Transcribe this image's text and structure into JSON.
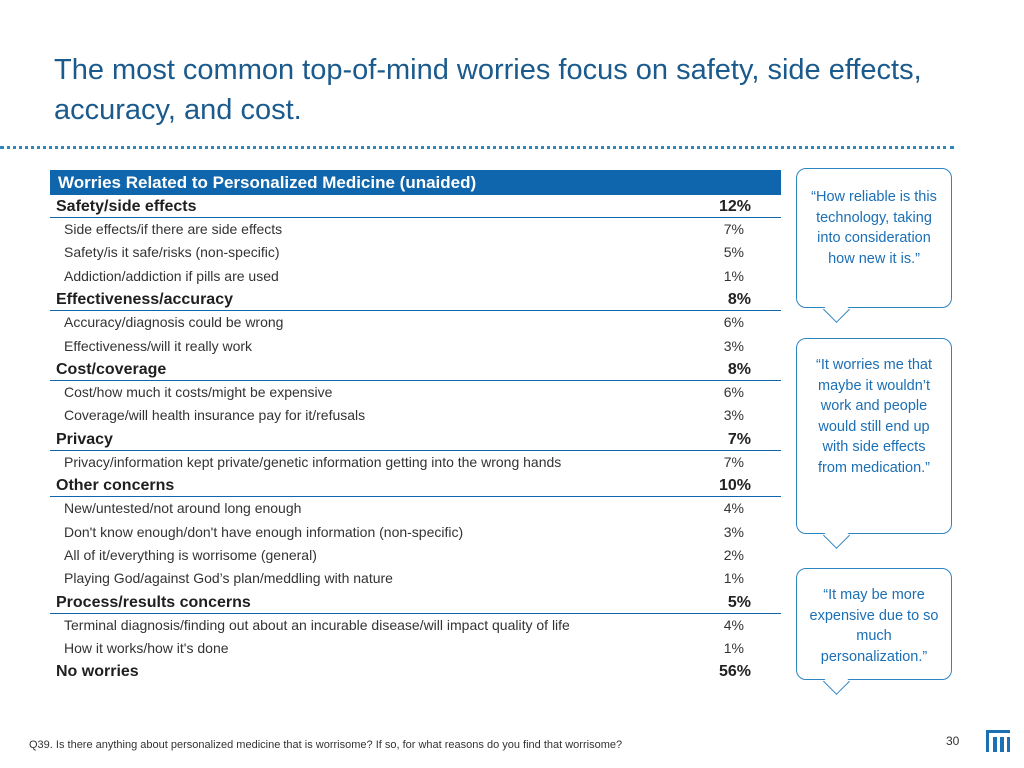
{
  "title": "The most common top-of-mind worries focus on safety, side effects, accuracy, and cost.",
  "table": {
    "header": "Worries Related to Personalized Medicine (unaided)",
    "rows": [
      {
        "kind": "cat",
        "label": "Safety/side effects",
        "pct": "12%"
      },
      {
        "kind": "sub",
        "label": "Side effects/if there are side effects",
        "pct": "7%"
      },
      {
        "kind": "sub",
        "label": "Safety/is it safe/risks (non-specific)",
        "pct": "5%"
      },
      {
        "kind": "sub",
        "label": "Addiction/addiction if pills are used",
        "pct": "1%"
      },
      {
        "kind": "cat",
        "label": "Effectiveness/accuracy",
        "pct": "8%"
      },
      {
        "kind": "sub",
        "label": "Accuracy/diagnosis could be wrong",
        "pct": "6%"
      },
      {
        "kind": "sub",
        "label": "Effectiveness/will it really work",
        "pct": "3%"
      },
      {
        "kind": "cat",
        "label": "Cost/coverage",
        "pct": "8%"
      },
      {
        "kind": "sub",
        "label": "Cost/how much it costs/might be expensive",
        "pct": "6%"
      },
      {
        "kind": "sub",
        "label": "Coverage/will health insurance pay for it/refusals",
        "pct": "3%"
      },
      {
        "kind": "cat",
        "label": "Privacy",
        "pct": "7%"
      },
      {
        "kind": "sub",
        "label": "Privacy/information kept private/genetic information getting into the wrong hands",
        "pct": "7%"
      },
      {
        "kind": "cat",
        "label": "Other concerns",
        "pct": "10%"
      },
      {
        "kind": "sub",
        "label": "New/untested/not around long enough",
        "pct": "4%"
      },
      {
        "kind": "sub",
        "label": "Don't know enough/don't have enough information (non-specific)",
        "pct": "3%"
      },
      {
        "kind": "sub",
        "label": "All of it/everything is worrisome (general)",
        "pct": "2%"
      },
      {
        "kind": "sub",
        "label": "Playing God/against God’s plan/meddling with nature",
        "pct": "1%"
      },
      {
        "kind": "cat",
        "label": "Process/results concerns",
        "pct": "5%"
      },
      {
        "kind": "sub",
        "label": "Terminal diagnosis/finding out about an incurable disease/will impact quality of life",
        "pct": "4%"
      },
      {
        "kind": "sub",
        "label": "How it works/how it's done",
        "pct": "1%"
      },
      {
        "kind": "cat",
        "label": "No worries",
        "pct": "56%"
      }
    ]
  },
  "quotes": [
    "“How reliable is this technology, taking into consideration how new it is.”",
    "“It worries me that maybe it wouldn’t work and people would still end up with side effects from medication.”",
    "“It may be more expensive due to so much personalization.”"
  ],
  "footnote": "Q39. Is there anything about personalized medicine that is worrisome? If so, for what reasons do you find that worrisome?",
  "page_number": "30",
  "colors": {
    "accent": "#0f66ad",
    "title": "#1b5a8c",
    "quote": "#1b6fb5"
  }
}
